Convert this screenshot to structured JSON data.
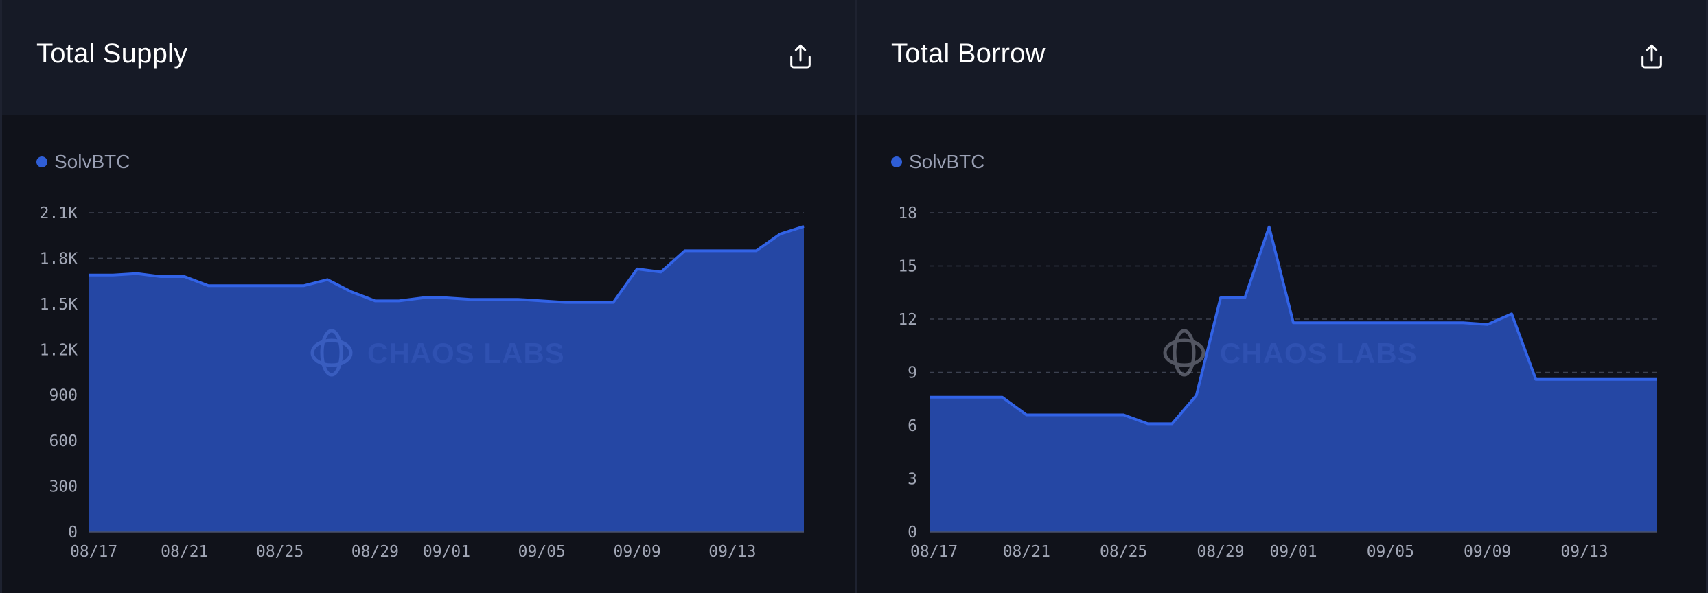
{
  "colors": {
    "area_fill": "#2547a4",
    "area_line": "#3263e6",
    "legend_dot": "#2f5ed6",
    "grid": "#3c4150"
  },
  "icons": {
    "export": "share-upload-icon",
    "watermark": "chaos-labs-logo"
  },
  "watermark": "CHAOS LABS",
  "panels": [
    {
      "title": "Total Supply",
      "legend": "SolvBTC"
    },
    {
      "title": "Total Borrow",
      "legend": "SolvBTC"
    }
  ],
  "chart_data": [
    {
      "type": "area",
      "title": "Total Supply",
      "series": [
        {
          "name": "SolvBTC",
          "values": [
            1690,
            1690,
            1700,
            1680,
            1680,
            1620,
            1620,
            1620,
            1620,
            1620,
            1660,
            1580,
            1520,
            1520,
            1540,
            1540,
            1530,
            1530,
            1530,
            1520,
            1510,
            1510,
            1510,
            1730,
            1710,
            1850,
            1850,
            1850,
            1850,
            1960,
            2010
          ]
        }
      ],
      "x": [
        "08/17",
        "08/18",
        "08/19",
        "08/20",
        "08/21",
        "08/22",
        "08/23",
        "08/24",
        "08/25",
        "08/26",
        "08/27",
        "08/28",
        "08/29",
        "08/30",
        "08/31",
        "09/01",
        "09/02",
        "09/03",
        "09/04",
        "09/05",
        "09/06",
        "09/07",
        "09/08",
        "09/09",
        "09/10",
        "09/11",
        "09/12",
        "09/13",
        "09/14",
        "09/15",
        "09/16"
      ],
      "x_tick_labels": [
        "08/17",
        "08/21",
        "08/25",
        "08/29",
        "09/01",
        "09/05",
        "09/09",
        "09/13"
      ],
      "y_tick_labels": [
        "0",
        "300",
        "600",
        "900",
        "1.2K",
        "1.5K",
        "1.8K",
        "2.1K"
      ],
      "y_ticks": [
        0,
        300,
        600,
        900,
        1200,
        1500,
        1800,
        2100
      ],
      "ylim": [
        0,
        2100
      ],
      "grid": true,
      "legend_position": "top-left"
    },
    {
      "type": "area",
      "title": "Total Borrow",
      "series": [
        {
          "name": "SolvBTC",
          "values": [
            7.6,
            7.6,
            7.6,
            7.6,
            6.6,
            6.6,
            6.6,
            6.6,
            6.6,
            6.1,
            6.1,
            7.7,
            13.2,
            13.2,
            17.2,
            11.8,
            11.8,
            11.8,
            11.8,
            11.8,
            11.8,
            11.8,
            11.8,
            11.7,
            12.3,
            8.6,
            8.6,
            8.6,
            8.6,
            8.6,
            8.6
          ]
        }
      ],
      "x": [
        "08/17",
        "08/18",
        "08/19",
        "08/20",
        "08/21",
        "08/22",
        "08/23",
        "08/24",
        "08/25",
        "08/26",
        "08/27",
        "08/28",
        "08/29",
        "08/30",
        "08/31",
        "09/01",
        "09/02",
        "09/03",
        "09/04",
        "09/05",
        "09/06",
        "09/07",
        "09/08",
        "09/09",
        "09/10",
        "09/11",
        "09/12",
        "09/13",
        "09/14",
        "09/15",
        "09/16"
      ],
      "x_tick_labels": [
        "08/17",
        "08/21",
        "08/25",
        "08/29",
        "09/01",
        "09/05",
        "09/09",
        "09/13"
      ],
      "y_tick_labels": [
        "0",
        "3",
        "6",
        "9",
        "12",
        "15",
        "18"
      ],
      "y_ticks": [
        0,
        3,
        6,
        9,
        12,
        15,
        18
      ],
      "ylim": [
        0,
        18
      ],
      "grid": true,
      "legend_position": "top-left"
    }
  ]
}
